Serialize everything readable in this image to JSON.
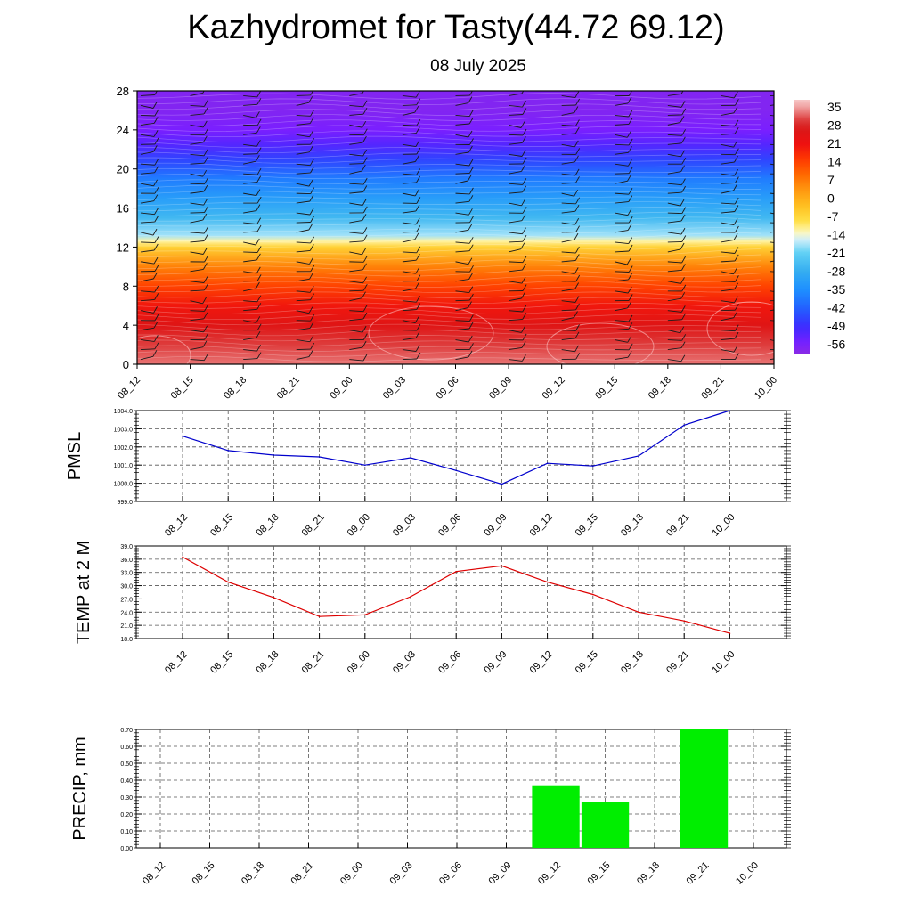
{
  "title": "Kazhydromet for Tasty(44.72 69.12)",
  "subtitle": "08 July 2025",
  "chart_data": [
    {
      "type": "heatmap",
      "x_categories": [
        "08_12",
        "08_15",
        "08_18",
        "08_21",
        "09_00",
        "09_03",
        "09_06",
        "09_09",
        "09_12",
        "09_15",
        "09_18",
        "09_21",
        "10_00"
      ],
      "y_ticks": [
        0,
        4,
        8,
        12,
        16,
        20,
        24,
        28
      ],
      "ylim": [
        0,
        28
      ],
      "colorbar_labels": [
        "35",
        "28",
        "21",
        "14",
        "7",
        "0",
        "-7",
        "-14",
        "-21",
        "-28",
        "-35",
        "-42",
        "-49",
        "-56"
      ],
      "temperature_profile": {
        "heights": [
          0,
          2,
          4,
          6,
          8,
          10,
          12,
          12.6,
          13.2,
          15,
          17,
          19,
          21,
          22.5,
          24,
          26,
          28
        ],
        "values": [
          33,
          30,
          25,
          20,
          14,
          6,
          -6,
          -12,
          -18,
          -26,
          -32,
          -38,
          -46,
          -52,
          -56,
          -58,
          -58
        ]
      },
      "wind_barbs": true
    },
    {
      "type": "line",
      "ylabel": "PMSL",
      "categories": [
        "08_12",
        "08_15",
        "08_18",
        "08_21",
        "09_00",
        "09_03",
        "09_06",
        "09_09",
        "09_12",
        "09_15",
        "09_18",
        "09_21",
        "10_00"
      ],
      "values": [
        1002.6,
        1001.8,
        1001.55,
        1001.45,
        1001.0,
        1001.4,
        1000.7,
        999.95,
        1001.1,
        1000.95,
        1001.5,
        1003.2,
        1004.0
      ],
      "y_ticks": [
        "999.0",
        "1000.0",
        "1001.0",
        "1002.0",
        "1003.0",
        "1004.0"
      ],
      "ylim": [
        999.0,
        1004.0
      ],
      "color": "#0000cc"
    },
    {
      "type": "line",
      "ylabel": "TEMP at 2 M",
      "categories": [
        "08_12",
        "08_15",
        "08_18",
        "08_21",
        "09_00",
        "09_03",
        "09_06",
        "09_09",
        "09_12",
        "09_15",
        "09_18",
        "09_21",
        "10_00"
      ],
      "values": [
        36.5,
        30.8,
        27.3,
        23.0,
        23.4,
        27.5,
        33.2,
        34.5,
        30.8,
        28.0,
        24.0,
        22.0,
        19.2
      ],
      "y_ticks": [
        "18.0",
        "21.0",
        "24.0",
        "27.0",
        "30.0",
        "33.0",
        "36.0",
        "39.0"
      ],
      "ylim": [
        18.0,
        39.0
      ],
      "color": "#dd0000"
    },
    {
      "type": "bar",
      "ylabel": "PRECIP, mm",
      "categories": [
        "08_12",
        "08_15",
        "08_18",
        "08_21",
        "09_00",
        "09_03",
        "09_06",
        "09_09",
        "09_12",
        "09_15",
        "09_18",
        "09_21",
        "10_00"
      ],
      "values": [
        0,
        0,
        0,
        0,
        0,
        0,
        0,
        0,
        0.37,
        0.27,
        0,
        0.7,
        0
      ],
      "y_ticks": [
        "0.00",
        "0.10",
        "0.20",
        "0.30",
        "0.40",
        "0.50",
        "0.60",
        "0.70"
      ],
      "ylim": [
        0,
        0.7
      ],
      "color": "#00ee00"
    }
  ]
}
